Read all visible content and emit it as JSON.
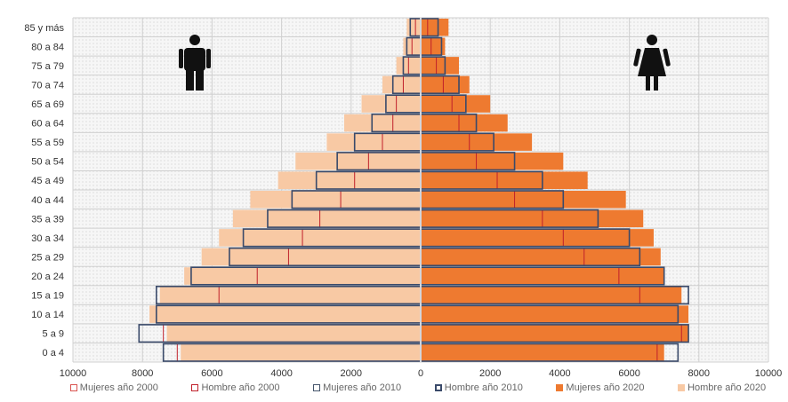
{
  "chart_data": {
    "type": "bar",
    "orientation": "horizontal",
    "categories": [
      "0 a 4",
      "5 a 9",
      "10 a 14",
      "15 a 19",
      "20 a 24",
      "25 a 29",
      "30 a 34",
      "35 a 39",
      "40 a 44",
      "45 a 49",
      "50 a 54",
      "55 a 59",
      "60 a 64",
      "65 a 69",
      "70 a 74",
      "75 a 79",
      "80 a 84",
      "85 y más"
    ],
    "xlim": [
      -10000,
      10000
    ],
    "xticks": [
      -10000,
      -8000,
      -6000,
      -4000,
      -2000,
      0,
      2000,
      4000,
      6000,
      8000,
      10000
    ],
    "xtick_labels": [
      "10000",
      "8000",
      "6000",
      "4000",
      "2000",
      "0",
      "2000",
      "4000",
      "6000",
      "8000",
      "10000"
    ],
    "grid": true,
    "legend_position": "bottom",
    "series": [
      {
        "name": "Mujeres año 2000",
        "side": "right",
        "style": "outline",
        "values": [
          6800,
          7500,
          7400,
          6300,
          5700,
          4700,
          4100,
          3500,
          2700,
          2200,
          1600,
          1400,
          1100,
          900,
          650,
          450,
          300,
          200
        ]
      },
      {
        "name": "Hombre año 2000",
        "side": "left",
        "style": "outline",
        "values": [
          7000,
          7400,
          7600,
          5800,
          4700,
          3800,
          3400,
          2900,
          2300,
          1900,
          1500,
          1100,
          800,
          700,
          500,
          350,
          250,
          150
        ]
      },
      {
        "name": "Mujeres año 2010",
        "side": "right",
        "style": "outline",
        "values": [
          7400,
          7700,
          7400,
          7700,
          7000,
          6300,
          6000,
          5100,
          4100,
          3500,
          2700,
          2100,
          1600,
          1300,
          1100,
          700,
          600,
          500
        ]
      },
      {
        "name": "Hombre año 2010",
        "side": "left",
        "style": "outline",
        "values": [
          7400,
          8100,
          7600,
          7600,
          6600,
          5500,
          5100,
          4400,
          3700,
          3000,
          2400,
          1900,
          1400,
          1000,
          800,
          500,
          400,
          300
        ]
      },
      {
        "name": "Mujeres año 2020",
        "side": "right",
        "style": "filled",
        "values": [
          7000,
          7700,
          7700,
          7500,
          7000,
          6900,
          6700,
          6400,
          5900,
          4800,
          4100,
          3200,
          2500,
          2000,
          1400,
          1100,
          700,
          800
        ]
      },
      {
        "name": "Hombre año 2020",
        "side": "left",
        "style": "filled",
        "values": [
          6900,
          7300,
          7800,
          7500,
          6800,
          6300,
          5800,
          5400,
          4900,
          4100,
          3600,
          2700,
          2200,
          1700,
          1100,
          700,
          500,
          400
        ]
      }
    ],
    "colors": {
      "female_2020": "#ee7a30",
      "male_2020": "#f8c9a4",
      "outline_2000": "#c0202a",
      "outline_2010": "#3a4a6a",
      "legend_2000": "#d9534f",
      "legend_2010": "#44546a",
      "grid": "#d0d0d0",
      "plot_bg": "#f4f4f4"
    },
    "icons": {
      "left": "man-icon",
      "right": "woman-icon"
    }
  }
}
